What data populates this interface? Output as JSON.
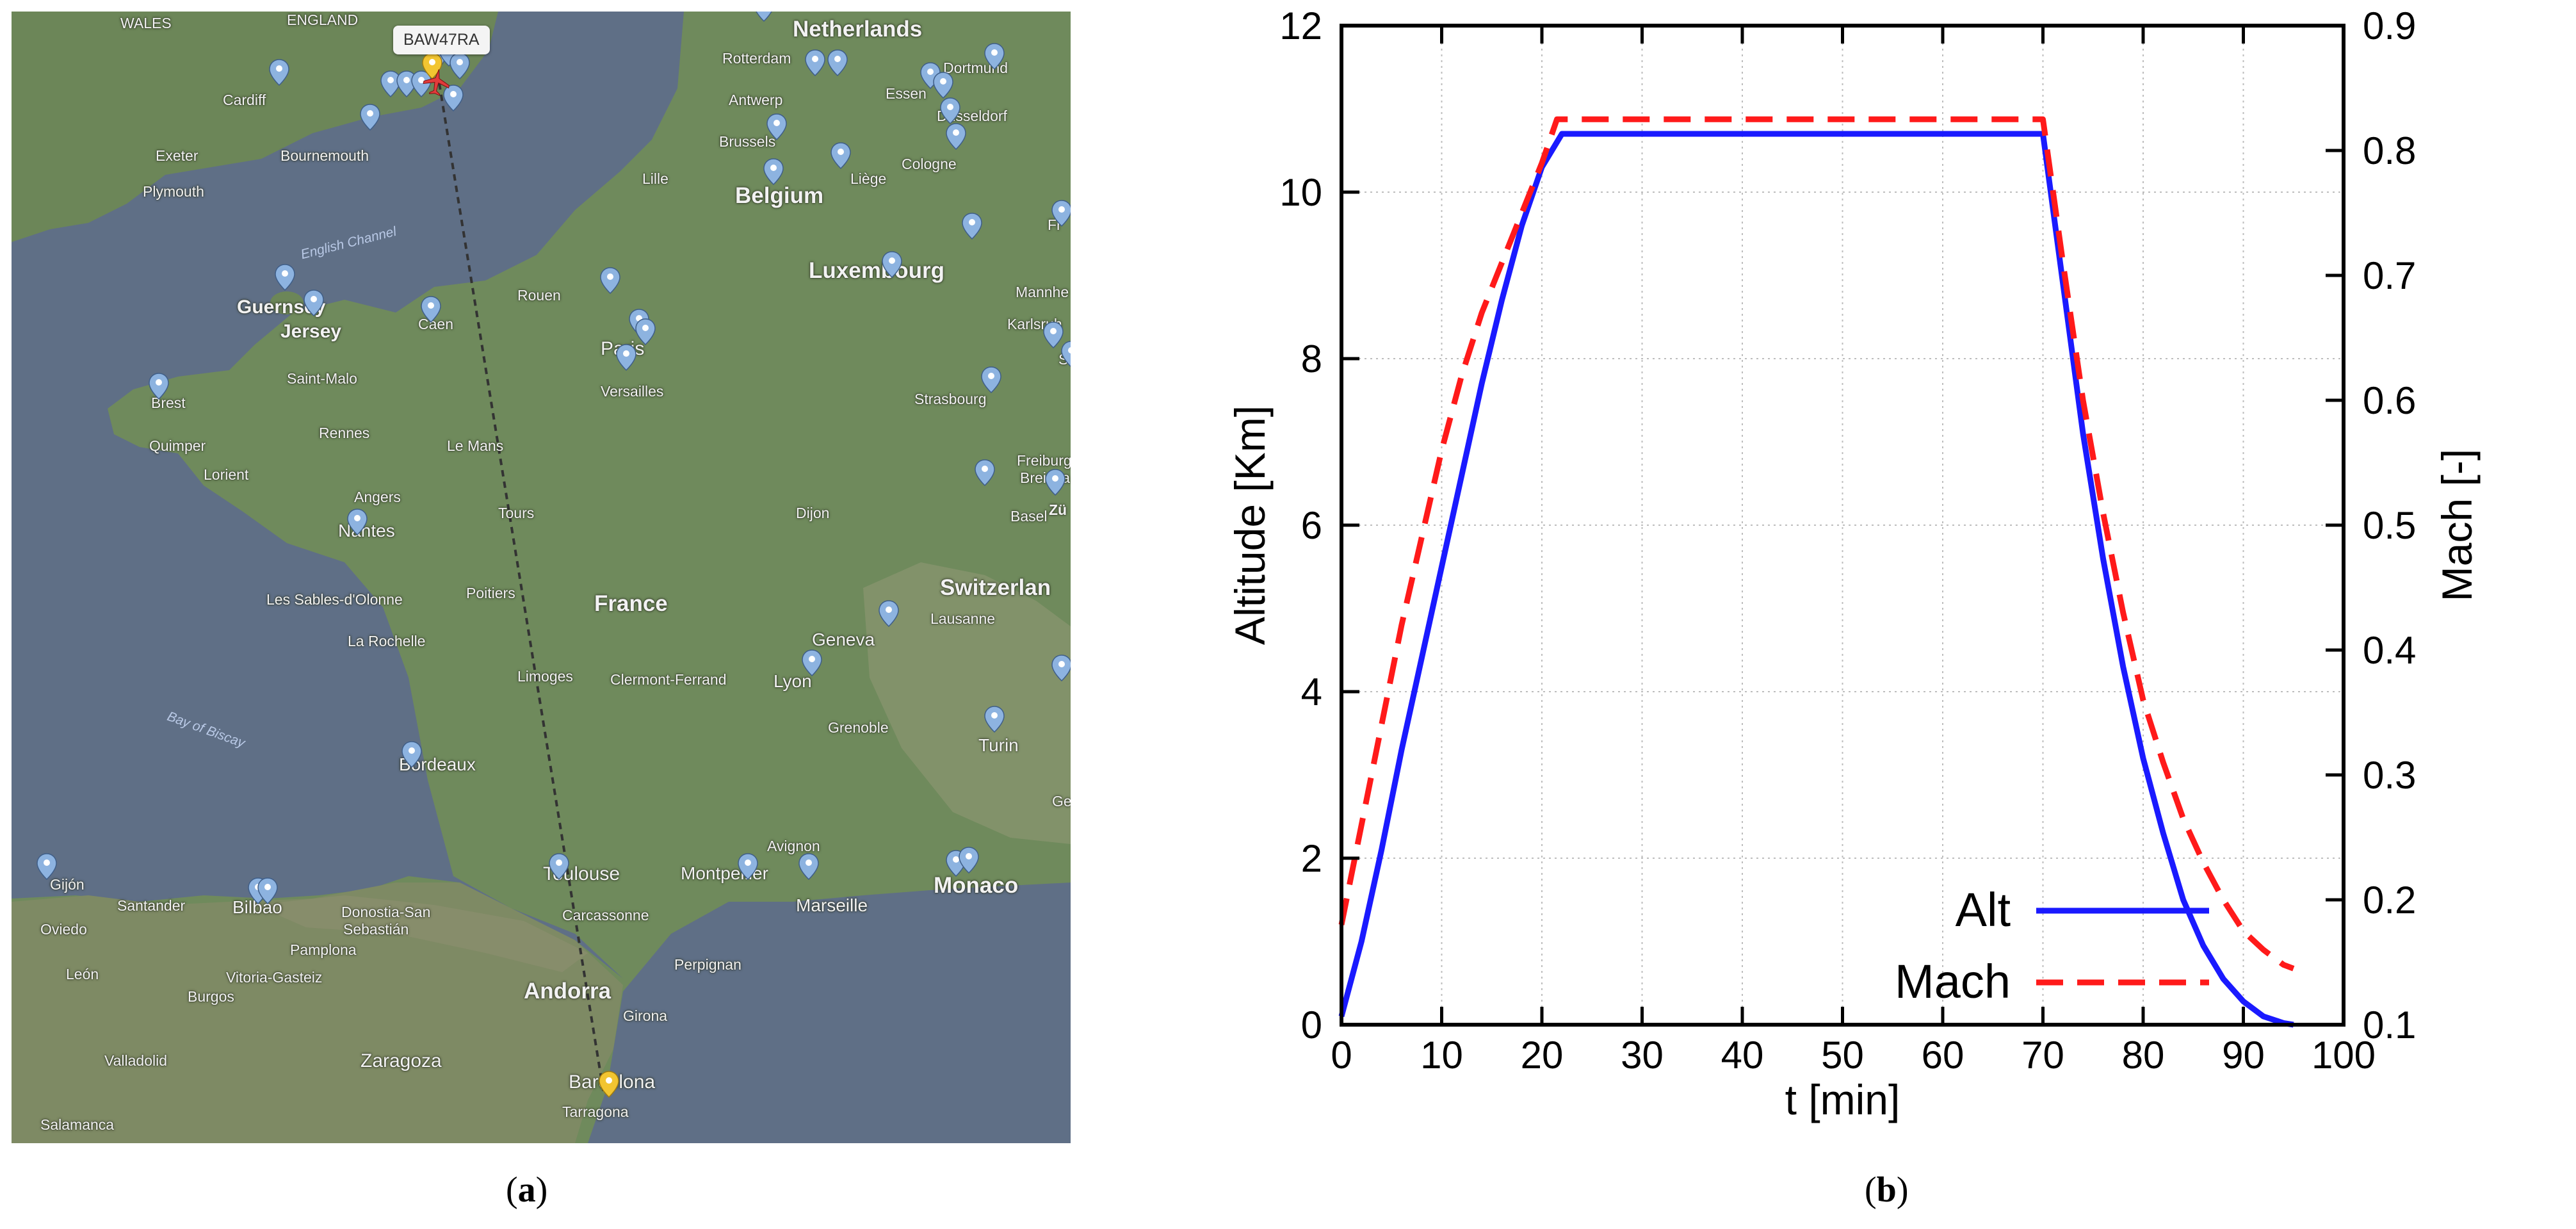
{
  "panels": {
    "a": {
      "caption_open": "(",
      "caption_letter": "a",
      "caption_close": ")"
    },
    "b": {
      "caption_open": "(",
      "caption_letter": "b",
      "caption_close": ")"
    }
  },
  "map": {
    "flight_label": "BAW47RA",
    "colors": {
      "water": "#5f6f86",
      "land": "#6f8a5c",
      "route": "#333333",
      "airport_pin": "#8db3e0",
      "origin_pin": "#f2c531",
      "aircraft": "#e23b3b"
    },
    "labels": {
      "wales": "WALES",
      "england": "ENGLAND",
      "netherlands": "Netherlands",
      "rotterdam": "Rotterdam",
      "dortmund": "Dortmund",
      "cardiff": "Cardiff",
      "antwerp": "Antwerp",
      "essen": "Essen",
      "dusseldorf": "Düsseldorf",
      "exeter": "Exeter",
      "bournemouth": "Bournemouth",
      "brussels": "Brussels",
      "cologne": "Cologne",
      "lille": "Lille",
      "liege": "Liège",
      "plymouth": "Plymouth",
      "belgium": "Belgium",
      "english_channel": "English Channel",
      "frankfurt": "Fr",
      "luxembourg": "Luxembourg",
      "rouen": "Rouen",
      "mannheim": "Mannhe",
      "guernsey": "Guernsey",
      "jersey": "Jersey",
      "caen": "Caen",
      "paris": "Paris",
      "karlsruhe": "Karlsruh",
      "stuttgart": "S",
      "versailles": "Versailles",
      "saint_malo": "Saint-Malo",
      "brest": "Brest",
      "strasbourg": "Strasbourg",
      "rennes": "Rennes",
      "quimper": "Quimper",
      "le_mans": "Le Mans",
      "lorient": "Lorient",
      "freiburg": "Freiburg",
      "breisgau": "Breisga",
      "angers": "Angers",
      "tours": "Tours",
      "dijon": "Dijon",
      "basel": "Basel",
      "zurich": "Zü",
      "nantes": "Nantes",
      "les_sables": "Les Sables-d'Olonne",
      "poitiers": "Poitiers",
      "france": "France",
      "switzerland": "Switzerlan",
      "lausanne": "Lausanne",
      "la_rochelle": "La Rochelle",
      "geneva": "Geneva",
      "limoges": "Limoges",
      "clermont": "Clermont-Ferrand",
      "lyon": "Lyon",
      "bay_of_biscay": "Bay of Biscay",
      "grenoble": "Grenoble",
      "turin": "Turin",
      "bordeaux": "Bordeaux",
      "ge": "Ge",
      "avignon": "Avignon",
      "toulouse": "Toulouse",
      "montpellier": "Montpellier",
      "gijon": "Gijón",
      "santander": "Santander",
      "bilbao": "Bilbao",
      "marseille": "Marseille",
      "monaco": "Monaco",
      "donostia": "Donostia-San",
      "sebastian": "Sebastián",
      "carcassonne": "Carcassonne",
      "oviedo": "Oviedo",
      "pamplona": "Pamplona",
      "perpignan": "Perpignan",
      "leon": "León",
      "vitoria": "Vitoria-Gasteiz",
      "burgos": "Burgos",
      "andorra": "Andorra",
      "girona": "Girona",
      "valladolid": "Valladolid",
      "zaragoza": "Zaragoza",
      "barcelona": "Barcelona",
      "tarragona": "Tarragona",
      "salamanca": "Salamanca"
    }
  },
  "chart_data": {
    "type": "line",
    "xlabel": "t [min]",
    "ylabel": "Altitude [Km]",
    "y2label": "Mach [-]",
    "xlim": [
      0,
      100
    ],
    "ylim": [
      0,
      12
    ],
    "y2lim": [
      0.1,
      0.9
    ],
    "xticks": [
      "0",
      "10",
      "20",
      "30",
      "40",
      "50",
      "60",
      "70",
      "80",
      "90",
      "100"
    ],
    "yticks": [
      "0",
      "2",
      "4",
      "6",
      "8",
      "10",
      "12"
    ],
    "y2ticks": [
      "0.1",
      "0.2",
      "0.3",
      "0.4",
      "0.5",
      "0.6",
      "0.7",
      "0.8",
      "0.9"
    ],
    "grid": true,
    "legend_position": "bottom-center",
    "series": [
      {
        "name": "Alt",
        "axis": "left",
        "color": "#1a1aff",
        "style": "solid",
        "x": [
          0,
          2,
          4,
          6,
          8,
          10,
          12,
          14,
          16,
          18,
          20,
          22,
          30,
          40,
          50,
          60,
          70,
          72,
          74,
          76,
          78,
          80,
          82,
          84,
          86,
          88,
          90,
          92,
          94,
          95
        ],
        "y": [
          0.1,
          1.0,
          2.1,
          3.3,
          4.4,
          5.5,
          6.6,
          7.7,
          8.7,
          9.6,
          10.3,
          10.7,
          10.7,
          10.7,
          10.7,
          10.7,
          10.7,
          8.9,
          7.1,
          5.6,
          4.3,
          3.2,
          2.3,
          1.5,
          0.95,
          0.55,
          0.28,
          0.1,
          0.02,
          0.0
        ]
      },
      {
        "name": "Mach",
        "axis": "right",
        "color": "#ff1a1a",
        "style": "dashed",
        "x": [
          0,
          1,
          2,
          4,
          6,
          8,
          10,
          12,
          14,
          16,
          18,
          20,
          21.5,
          30,
          40,
          50,
          60,
          70,
          72,
          74,
          76,
          78,
          80,
          82,
          84,
          86,
          88,
          90,
          92,
          94,
          95
        ],
        "y": [
          0.18,
          0.22,
          0.26,
          0.34,
          0.42,
          0.49,
          0.56,
          0.62,
          0.67,
          0.71,
          0.75,
          0.79,
          0.825,
          0.825,
          0.825,
          0.825,
          0.825,
          0.825,
          0.71,
          0.6,
          0.51,
          0.43,
          0.36,
          0.31,
          0.265,
          0.23,
          0.2,
          0.175,
          0.16,
          0.148,
          0.145
        ]
      }
    ]
  }
}
